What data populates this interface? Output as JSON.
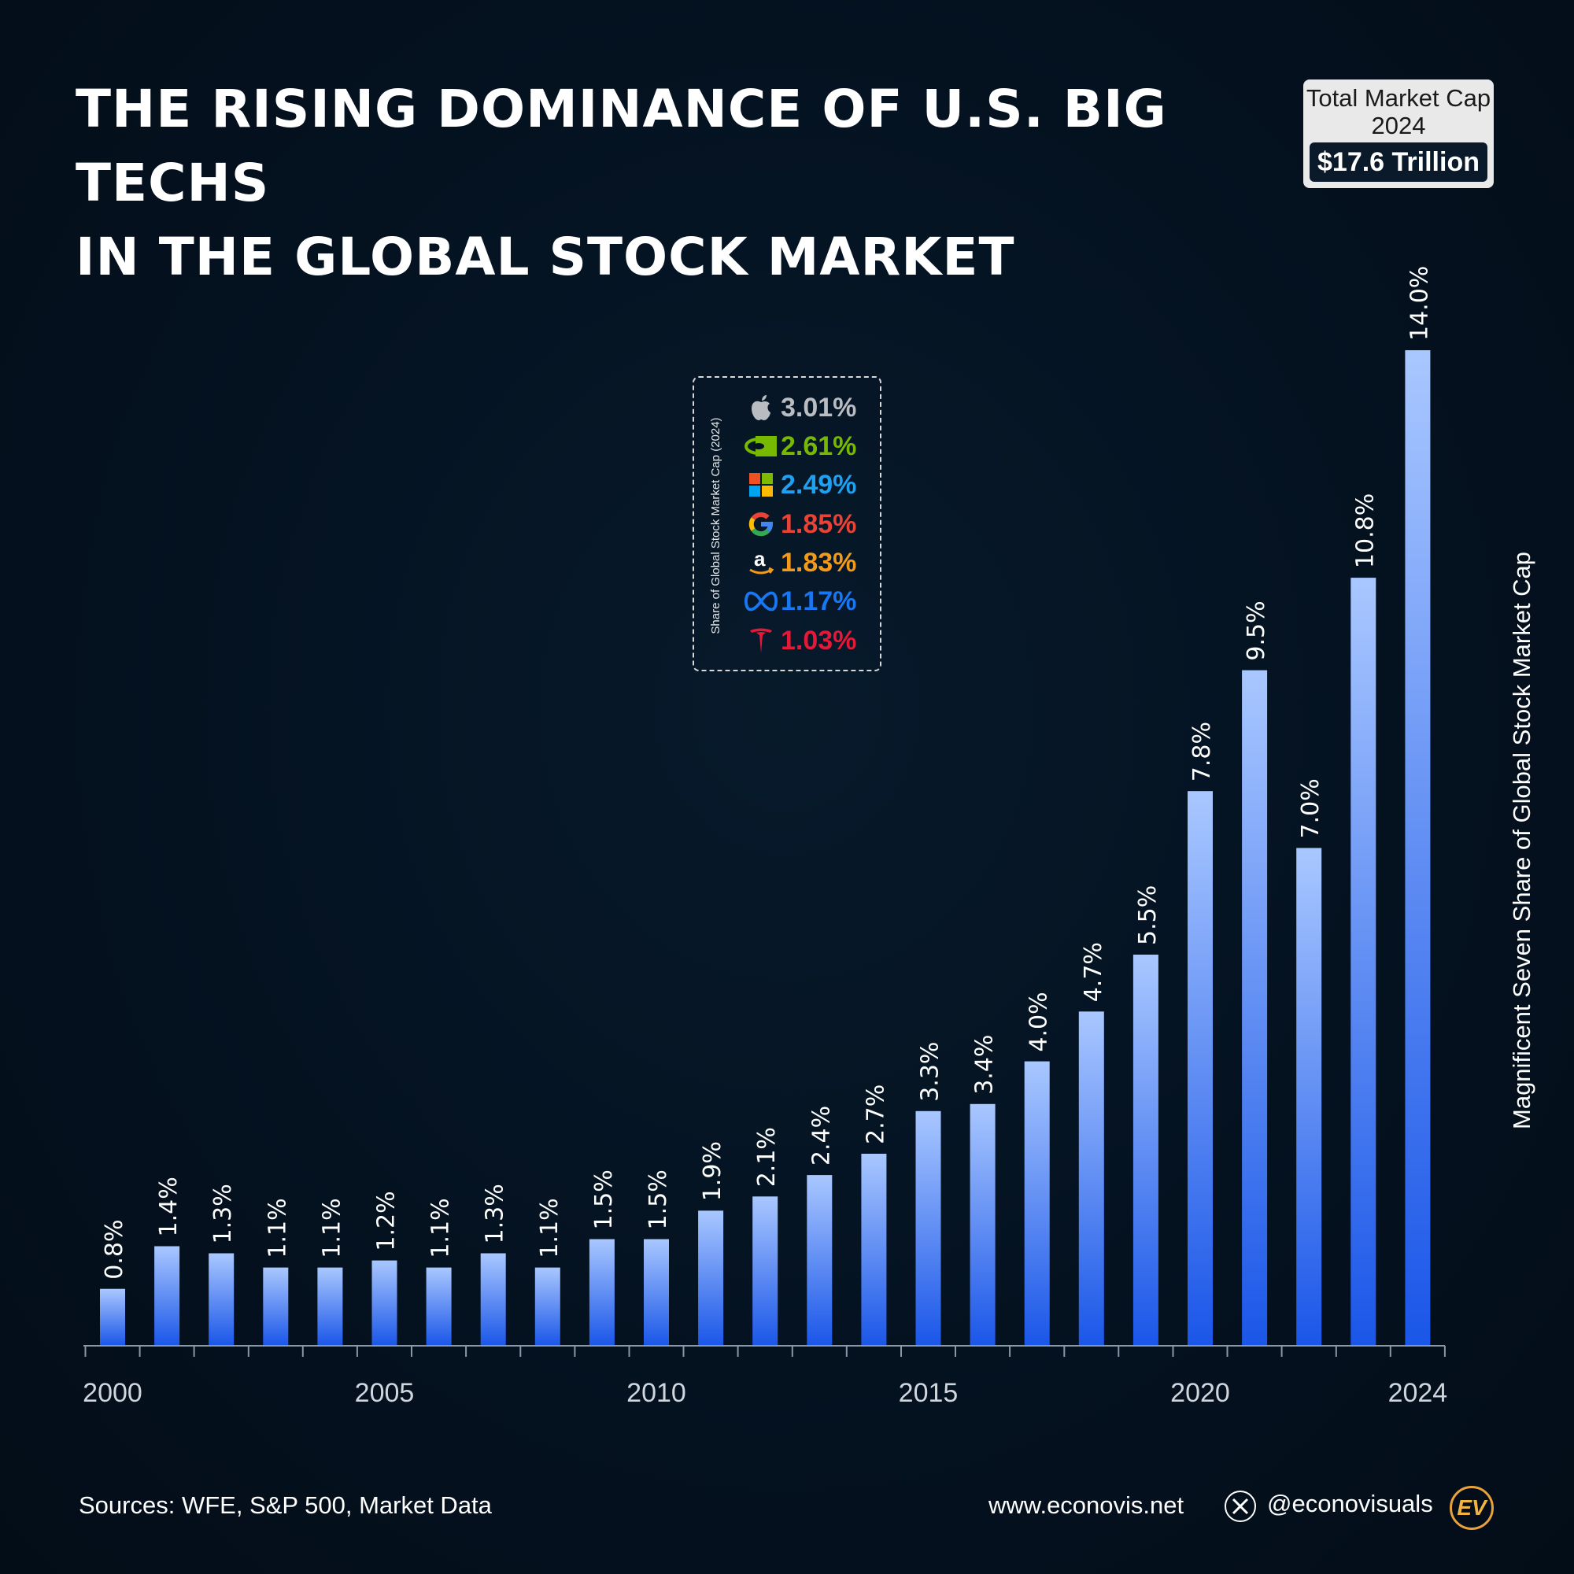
{
  "title": {
    "line1": "THE RISING DOMINANCE OF U.S. BIG TECHS",
    "line2": "IN THE GLOBAL STOCK MARKET"
  },
  "market_cap_box": {
    "label": "Total Market Cap",
    "year": "2024",
    "value": "$17.6 Trillion"
  },
  "legend": {
    "caption": "Share of Global Stock Market Cap (2024)",
    "items": [
      {
        "icon": "apple-icon",
        "value": "3.01%",
        "color": "#b9bdc2"
      },
      {
        "icon": "nvidia-icon",
        "value": "2.61%",
        "color": "#76b900"
      },
      {
        "icon": "microsoft-icon",
        "value": "2.49%",
        "color": "#1ea1f2"
      },
      {
        "icon": "google-icon",
        "value": "1.85%",
        "color": "#ea4335"
      },
      {
        "icon": "amazon-icon",
        "value": "1.83%",
        "color": "#f49a1a"
      },
      {
        "icon": "meta-icon",
        "value": "1.17%",
        "color": "#1877f2"
      },
      {
        "icon": "tesla-icon",
        "value": "1.03%",
        "color": "#e31937"
      }
    ]
  },
  "chart_data": {
    "type": "bar",
    "title": "THE RISING DOMINANCE OF U.S. BIG TECHS IN THE GLOBAL STOCK MARKET",
    "xlabel": "",
    "ylabel": "Magnificent Seven Share of Global Stock Market Cap",
    "categories": [
      2000,
      2001,
      2002,
      2003,
      2004,
      2005,
      2006,
      2007,
      2008,
      2009,
      2010,
      2011,
      2012,
      2013,
      2014,
      2015,
      2016,
      2017,
      2018,
      2019,
      2020,
      2021,
      2022,
      2023,
      2024
    ],
    "values": [
      0.8,
      1.4,
      1.3,
      1.1,
      1.1,
      1.2,
      1.1,
      1.3,
      1.1,
      1.5,
      1.5,
      1.9,
      2.1,
      2.4,
      2.7,
      3.3,
      3.4,
      4.0,
      4.7,
      5.5,
      7.8,
      9.5,
      7.0,
      10.8,
      14.0
    ],
    "value_labels": [
      "0.8%",
      "1.4%",
      "1.3%",
      "1.1%",
      "1.1%",
      "1.2%",
      "1.1%",
      "1.3%",
      "1.1%",
      "1.5%",
      "1.5%",
      "1.9%",
      "2.1%",
      "2.4%",
      "2.7%",
      "3.3%",
      "3.4%",
      "4.0%",
      "4.7%",
      "5.5%",
      "7.8%",
      "9.5%",
      "7.0%",
      "10.8%",
      "14.0%"
    ],
    "x_tick_labels": [
      "2000",
      "2005",
      "2010",
      "2015",
      "2020",
      "2024"
    ],
    "x_tick_years": [
      2000,
      2005,
      2010,
      2015,
      2020,
      2024
    ],
    "ylim": [
      0,
      14.0
    ],
    "grid": false,
    "colors": {
      "bar_top": "#a9c7ff",
      "bar_bottom": "#1a56e8",
      "axis": "#8a97a6"
    }
  },
  "footer": {
    "sources": "Sources: WFE, S&P 500, Market Data",
    "website": "www.econovis.net",
    "handle": "@econovisuals",
    "logo_text": "EV"
  }
}
